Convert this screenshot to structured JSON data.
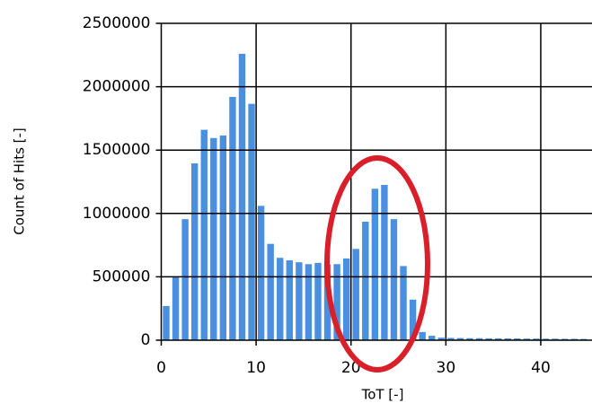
{
  "chart_data": {
    "type": "histogram",
    "xlabel": "ToT [-]",
    "ylabel": "Count of Hits [-]",
    "bins": [
      0,
      1,
      2,
      3,
      4,
      5,
      6,
      7,
      8,
      9,
      10,
      11,
      12,
      13,
      14,
      15,
      16,
      17,
      18,
      19,
      20,
      21,
      22,
      23,
      24,
      25,
      26,
      27,
      28,
      29,
      30,
      31,
      32,
      33,
      34,
      35,
      36,
      37,
      38,
      39,
      40,
      41,
      42,
      43,
      44,
      45
    ],
    "counts": [
      270000,
      500000,
      955000,
      1395000,
      1660000,
      1595000,
      1615000,
      1920000,
      2260000,
      1865000,
      1060000,
      760000,
      650000,
      630000,
      615000,
      600000,
      610000,
      600000,
      600000,
      645000,
      720000,
      935000,
      1195000,
      1225000,
      955000,
      585000,
      320000,
      65000,
      35000,
      20000,
      18000,
      17000,
      16000,
      16000,
      15000,
      15000,
      14000,
      14000,
      13000,
      13000,
      12000,
      12000,
      11000,
      11000,
      10000
    ],
    "color": "#4a8fe0",
    "xlim": [
      0,
      45.4
    ],
    "xticks": [
      0,
      10,
      20,
      30,
      40
    ],
    "ylim": [
      0,
      2500000
    ],
    "yticks": [
      0,
      500000,
      1000000,
      1500000,
      2000000,
      2500000
    ],
    "grid": true
  }
}
